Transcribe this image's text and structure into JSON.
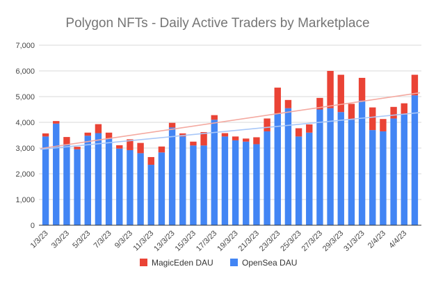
{
  "chart_data": {
    "type": "bar",
    "stacked": true,
    "title": "Polygon NFTs - Daily Active Traders by Marketplace",
    "xlabel": "",
    "ylabel": "",
    "ylim": [
      0,
      7000
    ],
    "yticks": [
      0,
      1000,
      2000,
      3000,
      4000,
      5000,
      6000,
      7000
    ],
    "ytick_labels": [
      "0",
      "1,000",
      "2,000",
      "3,000",
      "4,000",
      "5,000",
      "6,000",
      "7,000"
    ],
    "grid": true,
    "legend_position": "bottom",
    "categories": [
      "1/3/23",
      "2/3/23",
      "3/3/23",
      "4/3/23",
      "5/3/23",
      "6/3/23",
      "7/3/23",
      "8/3/23",
      "9/3/23",
      "10/3/23",
      "11/3/23",
      "12/3/23",
      "13/3/23",
      "14/3/23",
      "15/3/23",
      "16/3/23",
      "17/3/23",
      "18/3/23",
      "19/3/23",
      "20/3/23",
      "21/3/23",
      "22/3/23",
      "23/3/23",
      "24/3/23",
      "25/3/23",
      "26/3/23",
      "27/3/23",
      "28/3/23",
      "29/3/23",
      "30/3/23",
      "31/3/23",
      "1/4/23",
      "2/4/23",
      "3/4/23",
      "4/4/23",
      "5/4/23"
    ],
    "xtick_labels": [
      "1/3/23",
      "",
      "3/3/23",
      "",
      "5/3/23",
      "",
      "7/3/23",
      "",
      "9/3/23",
      "",
      "11/3/23",
      "",
      "13/3/23",
      "",
      "15/3/23",
      "",
      "17/3/23",
      "",
      "19/3/23",
      "",
      "21/3/23",
      "",
      "23/3/23",
      "",
      "25/3/23",
      "",
      "27/3/23",
      "",
      "29/3/23",
      "",
      "31/3/23",
      "",
      "2/4/23",
      "",
      "4/4/23",
      ""
    ],
    "series": [
      {
        "name": "OpenSea DAU",
        "color": "#4285f4",
        "values": [
          3450,
          3950,
          3150,
          2950,
          3480,
          3580,
          3380,
          2980,
          2920,
          2800,
          2350,
          2830,
          3800,
          3450,
          3100,
          3100,
          4100,
          3450,
          3300,
          3250,
          3150,
          3650,
          4350,
          4550,
          3450,
          3600,
          4500,
          4550,
          4400,
          4100,
          4850,
          3700,
          3650,
          4150,
          4300,
          5050
        ]
      },
      {
        "name": "MagicEden DAU",
        "color": "#ea4335",
        "values": [
          120,
          100,
          280,
          100,
          120,
          350,
          220,
          130,
          420,
          400,
          300,
          230,
          180,
          120,
          150,
          520,
          180,
          130,
          150,
          120,
          270,
          500,
          1000,
          320,
          320,
          320,
          450,
          1450,
          1450,
          620,
          880,
          880,
          480,
          450,
          440,
          800
        ]
      }
    ],
    "trendlines": [
      {
        "series": "MagicEden DAU",
        "color": "#f4a9a0",
        "start": 2980,
        "end": 5150
      },
      {
        "series": "OpenSea DAU",
        "color": "#a8c7f8",
        "start": 2950,
        "end": 4380
      }
    ]
  }
}
